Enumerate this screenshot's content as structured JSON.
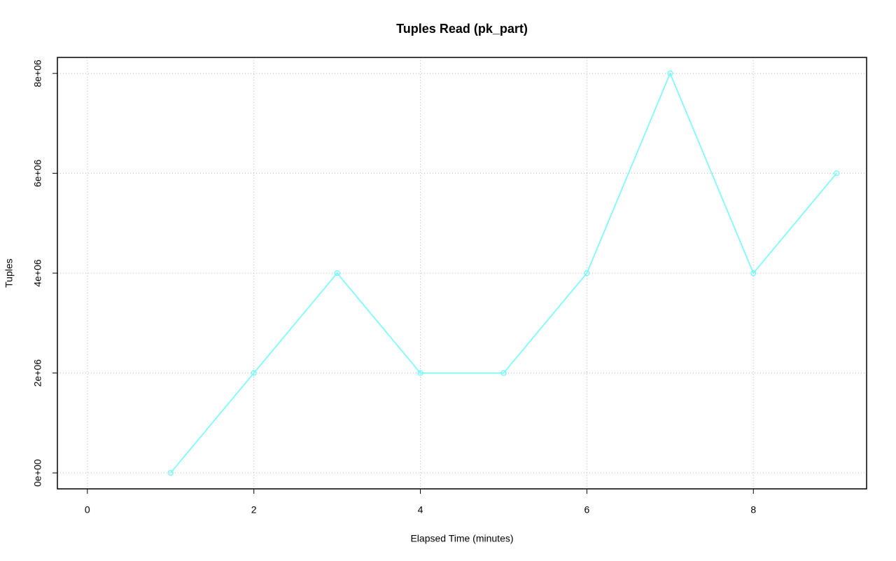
{
  "chart_data": {
    "type": "line",
    "title": "Tuples Read (pk_part)",
    "x_label": "Elapsed Time (minutes)",
    "y_label": "Tuples",
    "x": [
      1,
      2,
      3,
      4,
      5,
      6,
      7,
      8,
      9
    ],
    "series": [
      {
        "color": "#66ffff",
        "values": [
          0,
          2000000,
          4000000,
          2000000,
          2000000,
          4000000,
          8000000,
          4000000,
          6000000
        ]
      }
    ],
    "xlim": [
      -0.36,
      9.36
    ],
    "ylim": [
      -320000,
      8320000
    ],
    "xticks": [
      0,
      2,
      4,
      6,
      8
    ],
    "yticks": [
      {
        "value": 0,
        "label": "0e+00"
      },
      {
        "value": 2000000,
        "label": "2e+06"
      },
      {
        "value": 4000000,
        "label": "4e+06"
      },
      {
        "value": 6000000,
        "label": "6e+06"
      },
      {
        "value": 8000000,
        "label": "8e+06"
      }
    ],
    "grid": true
  }
}
